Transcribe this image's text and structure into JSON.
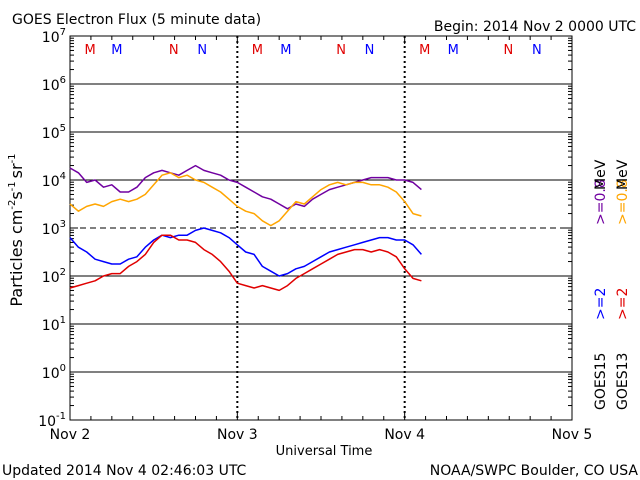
{
  "chart_data": {
    "type": "line",
    "title": "GOES Electron Flux (5 minute data)",
    "begin_label": "Begin: 2014 Nov 2 0000 UTC",
    "xlabel": "Universal Time",
    "ylabel_main": "Particles cm",
    "ylabel_sup1": "-2",
    "ylabel_mid1": "s",
    "ylabel_sup2": "-1",
    "ylabel_mid2": "sr",
    "ylabel_sup3": "-1",
    "footer_left": "Updated 2014 Nov  4 02:46:03 UTC",
    "footer_right": "NOAA/SWPC Boulder, CO USA",
    "x_ticks": [
      "Nov 2",
      "Nov 3",
      "Nov 4",
      "Nov 5"
    ],
    "xlim_days": [
      0,
      3
    ],
    "ylim_log10": [
      -1,
      7
    ],
    "y_ticks": [
      {
        "base": "10",
        "exp": "7"
      },
      {
        "base": "10",
        "exp": "6"
      },
      {
        "base": "10",
        "exp": "5"
      },
      {
        "base": "10",
        "exp": "4"
      },
      {
        "base": "10",
        "exp": "3"
      },
      {
        "base": "10",
        "exp": "2"
      },
      {
        "base": "10",
        "exp": "1"
      },
      {
        "base": "10",
        "exp": "0"
      },
      {
        "base": "10",
        "exp": "-1"
      }
    ],
    "threshold_log10": 3,
    "markers": [
      {
        "label": "M",
        "day": 0.12,
        "color": "#e00000"
      },
      {
        "label": "M",
        "day": 0.28,
        "color": "#0000ff"
      },
      {
        "label": "N",
        "day": 0.62,
        "color": "#e00000"
      },
      {
        "label": "N",
        "day": 0.79,
        "color": "#0000ff"
      },
      {
        "label": "M",
        "day": 1.12,
        "color": "#e00000"
      },
      {
        "label": "M",
        "day": 1.29,
        "color": "#0000ff"
      },
      {
        "label": "N",
        "day": 1.62,
        "color": "#e00000"
      },
      {
        "label": "N",
        "day": 1.79,
        "color": "#0000ff"
      },
      {
        "label": "M",
        "day": 2.12,
        "color": "#e00000"
      },
      {
        "label": "M",
        "day": 2.29,
        "color": "#0000ff"
      },
      {
        "label": "N",
        "day": 2.62,
        "color": "#e00000"
      },
      {
        "label": "N",
        "day": 2.79,
        "color": "#0000ff"
      }
    ],
    "legend": [
      {
        "satellite": "GOES15",
        "low_label": ">=2",
        "high_label": ">=0.8",
        "unit": "MeV",
        "low_color": "#0000ff",
        "high_color": "#7000a0"
      },
      {
        "satellite": "GOES13",
        "low_label": ">=2",
        "high_label": ">=0.8",
        "unit": "MeV",
        "low_color": "#e00000",
        "high_color": "#ffa500"
      }
    ],
    "series": [
      {
        "name": "GOES15 >=0.8 MeV",
        "color": "#7000a0",
        "x": [
          0,
          0.05,
          0.1,
          0.15,
          0.2,
          0.25,
          0.3,
          0.35,
          0.4,
          0.45,
          0.5,
          0.55,
          0.6,
          0.65,
          0.7,
          0.75,
          0.8,
          0.85,
          0.9,
          0.95,
          1.0,
          1.05,
          1.1,
          1.15,
          1.2,
          1.25,
          1.3,
          1.35,
          1.4,
          1.45,
          1.5,
          1.55,
          1.6,
          1.65,
          1.7,
          1.75,
          1.8,
          1.85,
          1.9,
          1.95,
          2.0,
          2.05,
          2.1
        ],
        "y": [
          4.25,
          4.15,
          3.95,
          4.0,
          3.85,
          3.9,
          3.75,
          3.75,
          3.85,
          4.05,
          4.15,
          4.2,
          4.15,
          4.1,
          4.2,
          4.3,
          4.2,
          4.15,
          4.1,
          4.0,
          3.95,
          3.85,
          3.75,
          3.65,
          3.6,
          3.5,
          3.4,
          3.5,
          3.45,
          3.6,
          3.7,
          3.8,
          3.85,
          3.9,
          3.95,
          4.0,
          4.05,
          4.05,
          4.05,
          4.0,
          4.0,
          3.95,
          3.8
        ]
      },
      {
        "name": "GOES13 >=0.8 MeV",
        "color": "#ffa500",
        "x": [
          0,
          0.05,
          0.1,
          0.15,
          0.2,
          0.25,
          0.3,
          0.35,
          0.4,
          0.45,
          0.5,
          0.55,
          0.6,
          0.65,
          0.7,
          0.75,
          0.8,
          0.85,
          0.9,
          0.95,
          1.0,
          1.05,
          1.1,
          1.15,
          1.2,
          1.25,
          1.3,
          1.35,
          1.4,
          1.45,
          1.5,
          1.55,
          1.6,
          1.65,
          1.7,
          1.75,
          1.8,
          1.85,
          1.9,
          1.95,
          2.0,
          2.05,
          2.1
        ],
        "y": [
          3.5,
          3.35,
          3.45,
          3.5,
          3.45,
          3.55,
          3.6,
          3.55,
          3.6,
          3.7,
          3.9,
          4.1,
          4.15,
          4.05,
          4.1,
          4.0,
          3.95,
          3.85,
          3.75,
          3.6,
          3.45,
          3.35,
          3.3,
          3.15,
          3.05,
          3.15,
          3.35,
          3.55,
          3.5,
          3.65,
          3.8,
          3.9,
          3.95,
          3.9,
          3.95,
          3.95,
          3.9,
          3.9,
          3.85,
          3.75,
          3.55,
          3.3,
          3.25
        ]
      },
      {
        "name": "GOES15 >=2 MeV",
        "color": "#0000ff",
        "x": [
          0,
          0.05,
          0.1,
          0.15,
          0.2,
          0.25,
          0.3,
          0.35,
          0.4,
          0.45,
          0.5,
          0.55,
          0.6,
          0.65,
          0.7,
          0.75,
          0.8,
          0.85,
          0.9,
          0.95,
          1.0,
          1.05,
          1.1,
          1.15,
          1.2,
          1.25,
          1.3,
          1.35,
          1.4,
          1.45,
          1.5,
          1.55,
          1.6,
          1.65,
          1.7,
          1.75,
          1.8,
          1.85,
          1.9,
          1.95,
          2.0,
          2.05,
          2.1
        ],
        "y": [
          2.8,
          2.6,
          2.5,
          2.35,
          2.3,
          2.25,
          2.25,
          2.35,
          2.4,
          2.6,
          2.75,
          2.85,
          2.8,
          2.85,
          2.85,
          2.95,
          3.0,
          2.95,
          2.9,
          2.8,
          2.65,
          2.5,
          2.45,
          2.2,
          2.1,
          2.0,
          2.05,
          2.15,
          2.2,
          2.3,
          2.4,
          2.5,
          2.55,
          2.6,
          2.65,
          2.7,
          2.75,
          2.8,
          2.8,
          2.75,
          2.75,
          2.65,
          2.45
        ]
      },
      {
        "name": "GOES13 >=2 MeV",
        "color": "#e00000",
        "x": [
          0,
          0.05,
          0.1,
          0.15,
          0.2,
          0.25,
          0.3,
          0.35,
          0.4,
          0.45,
          0.5,
          0.55,
          0.6,
          0.65,
          0.7,
          0.75,
          0.8,
          0.85,
          0.9,
          0.95,
          1.0,
          1.05,
          1.1,
          1.15,
          1.2,
          1.25,
          1.3,
          1.35,
          1.4,
          1.45,
          1.5,
          1.55,
          1.6,
          1.65,
          1.7,
          1.75,
          1.8,
          1.85,
          1.9,
          1.95,
          2.0,
          2.05,
          2.1
        ],
        "y": [
          1.75,
          1.8,
          1.85,
          1.9,
          2.0,
          2.05,
          2.05,
          2.2,
          2.3,
          2.45,
          2.7,
          2.85,
          2.85,
          2.75,
          2.75,
          2.7,
          2.55,
          2.45,
          2.3,
          2.1,
          1.85,
          1.8,
          1.75,
          1.8,
          1.75,
          1.7,
          1.8,
          1.95,
          2.05,
          2.15,
          2.25,
          2.35,
          2.45,
          2.5,
          2.55,
          2.55,
          2.5,
          2.55,
          2.5,
          2.4,
          2.15,
          1.95,
          1.9
        ]
      }
    ]
  }
}
